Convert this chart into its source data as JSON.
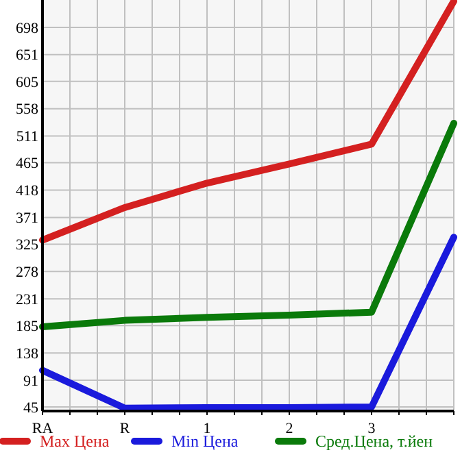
{
  "chart_data": {
    "type": "line",
    "categories": [
      "RA",
      "R",
      "1",
      "2",
      "3",
      null
    ],
    "series": [
      {
        "name": "Max Цена",
        "color": "#d42020",
        "values": [
          332,
          388,
          430,
          463,
          497,
          743
        ]
      },
      {
        "name": "Min Цена",
        "color": "#1a1adc",
        "values": [
          108,
          43,
          44,
          44,
          45,
          337
        ]
      },
      {
        "name": "Сред.Цена, т.йен",
        "color": "#0a7a0a",
        "values": [
          183,
          194,
          199,
          203,
          208,
          533
        ]
      }
    ],
    "ylim": [
      38,
      745
    ],
    "yticks": [
      45,
      91,
      138,
      185,
      231,
      278,
      325,
      371,
      418,
      465,
      511,
      558,
      605,
      651,
      698
    ],
    "grid": true,
    "legend": "bottom",
    "marker": "none",
    "line_style": "solid"
  }
}
